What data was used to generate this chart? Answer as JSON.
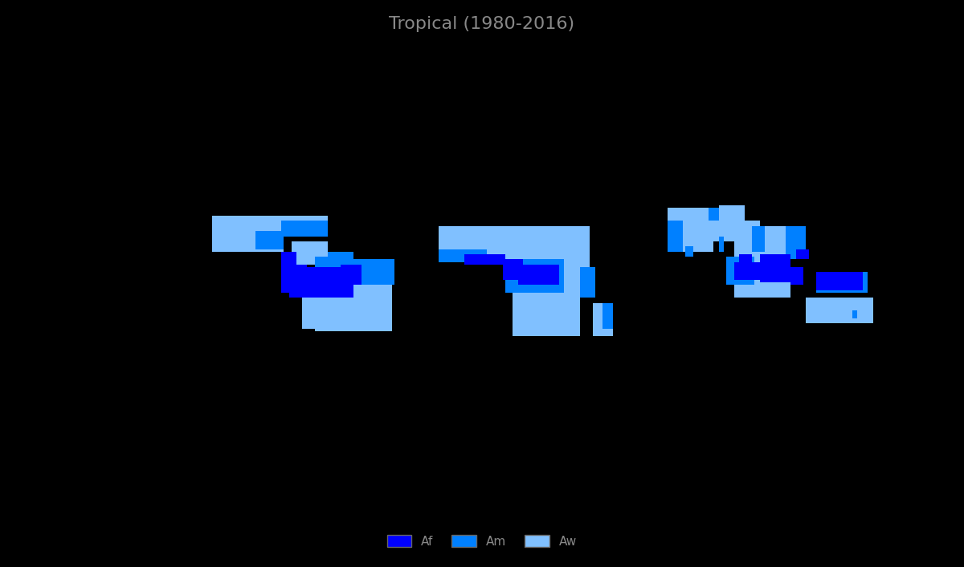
{
  "title": "Tropical (1980-2016)",
  "title_color": "#888888",
  "title_fontsize": 16,
  "background_color": "#000000",
  "land_color": "#c8c8c8",
  "ocean_color": "#000000",
  "border_color": "#444444",
  "border_linewidth": 0.4,
  "climate_zones": {
    "Af": {
      "color": "#0000ff",
      "label": "Af"
    },
    "Am": {
      "color": "#0080ff",
      "label": "Am"
    },
    "Aw": {
      "color": "#80c0ff",
      "label": "Aw"
    }
  },
  "legend_textcolor": "#888888",
  "legend_fontsize": 11
}
